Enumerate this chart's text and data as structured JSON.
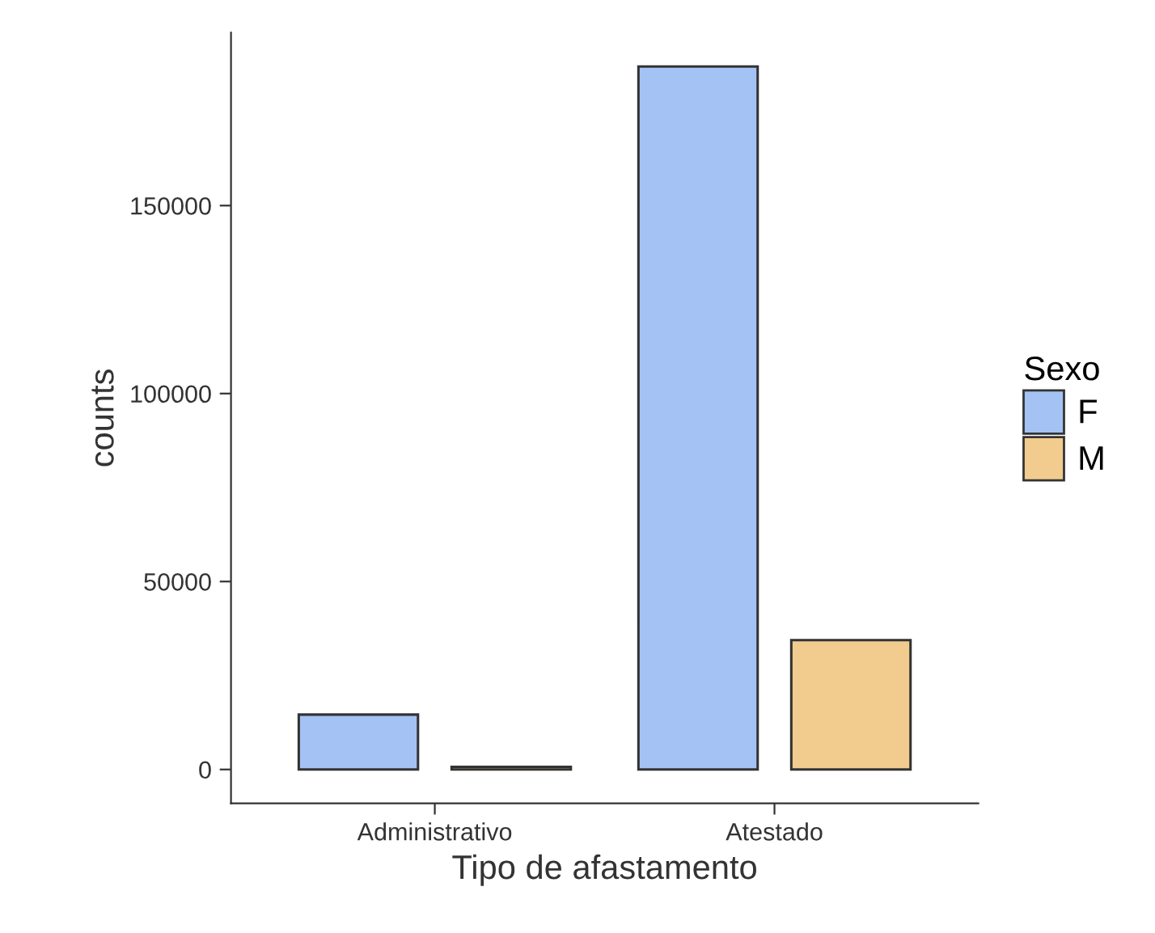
{
  "chart_data": {
    "type": "bar",
    "xlabel": "Tipo de afastamento",
    "ylabel": "counts",
    "legend_title": "Sexo",
    "categories": [
      "Administrativo",
      "Atestado"
    ],
    "series": [
      {
        "name": "F",
        "color": "#a4c2f4",
        "values": [
          14600,
          187000
        ]
      },
      {
        "name": "M",
        "color": "#f2cc8f",
        "values": [
          700,
          34400
        ]
      }
    ],
    "ylim": [
      -9000,
      196000
    ],
    "yticks": [
      0,
      50000,
      100000,
      150000
    ],
    "grid": false,
    "legend": "right"
  }
}
